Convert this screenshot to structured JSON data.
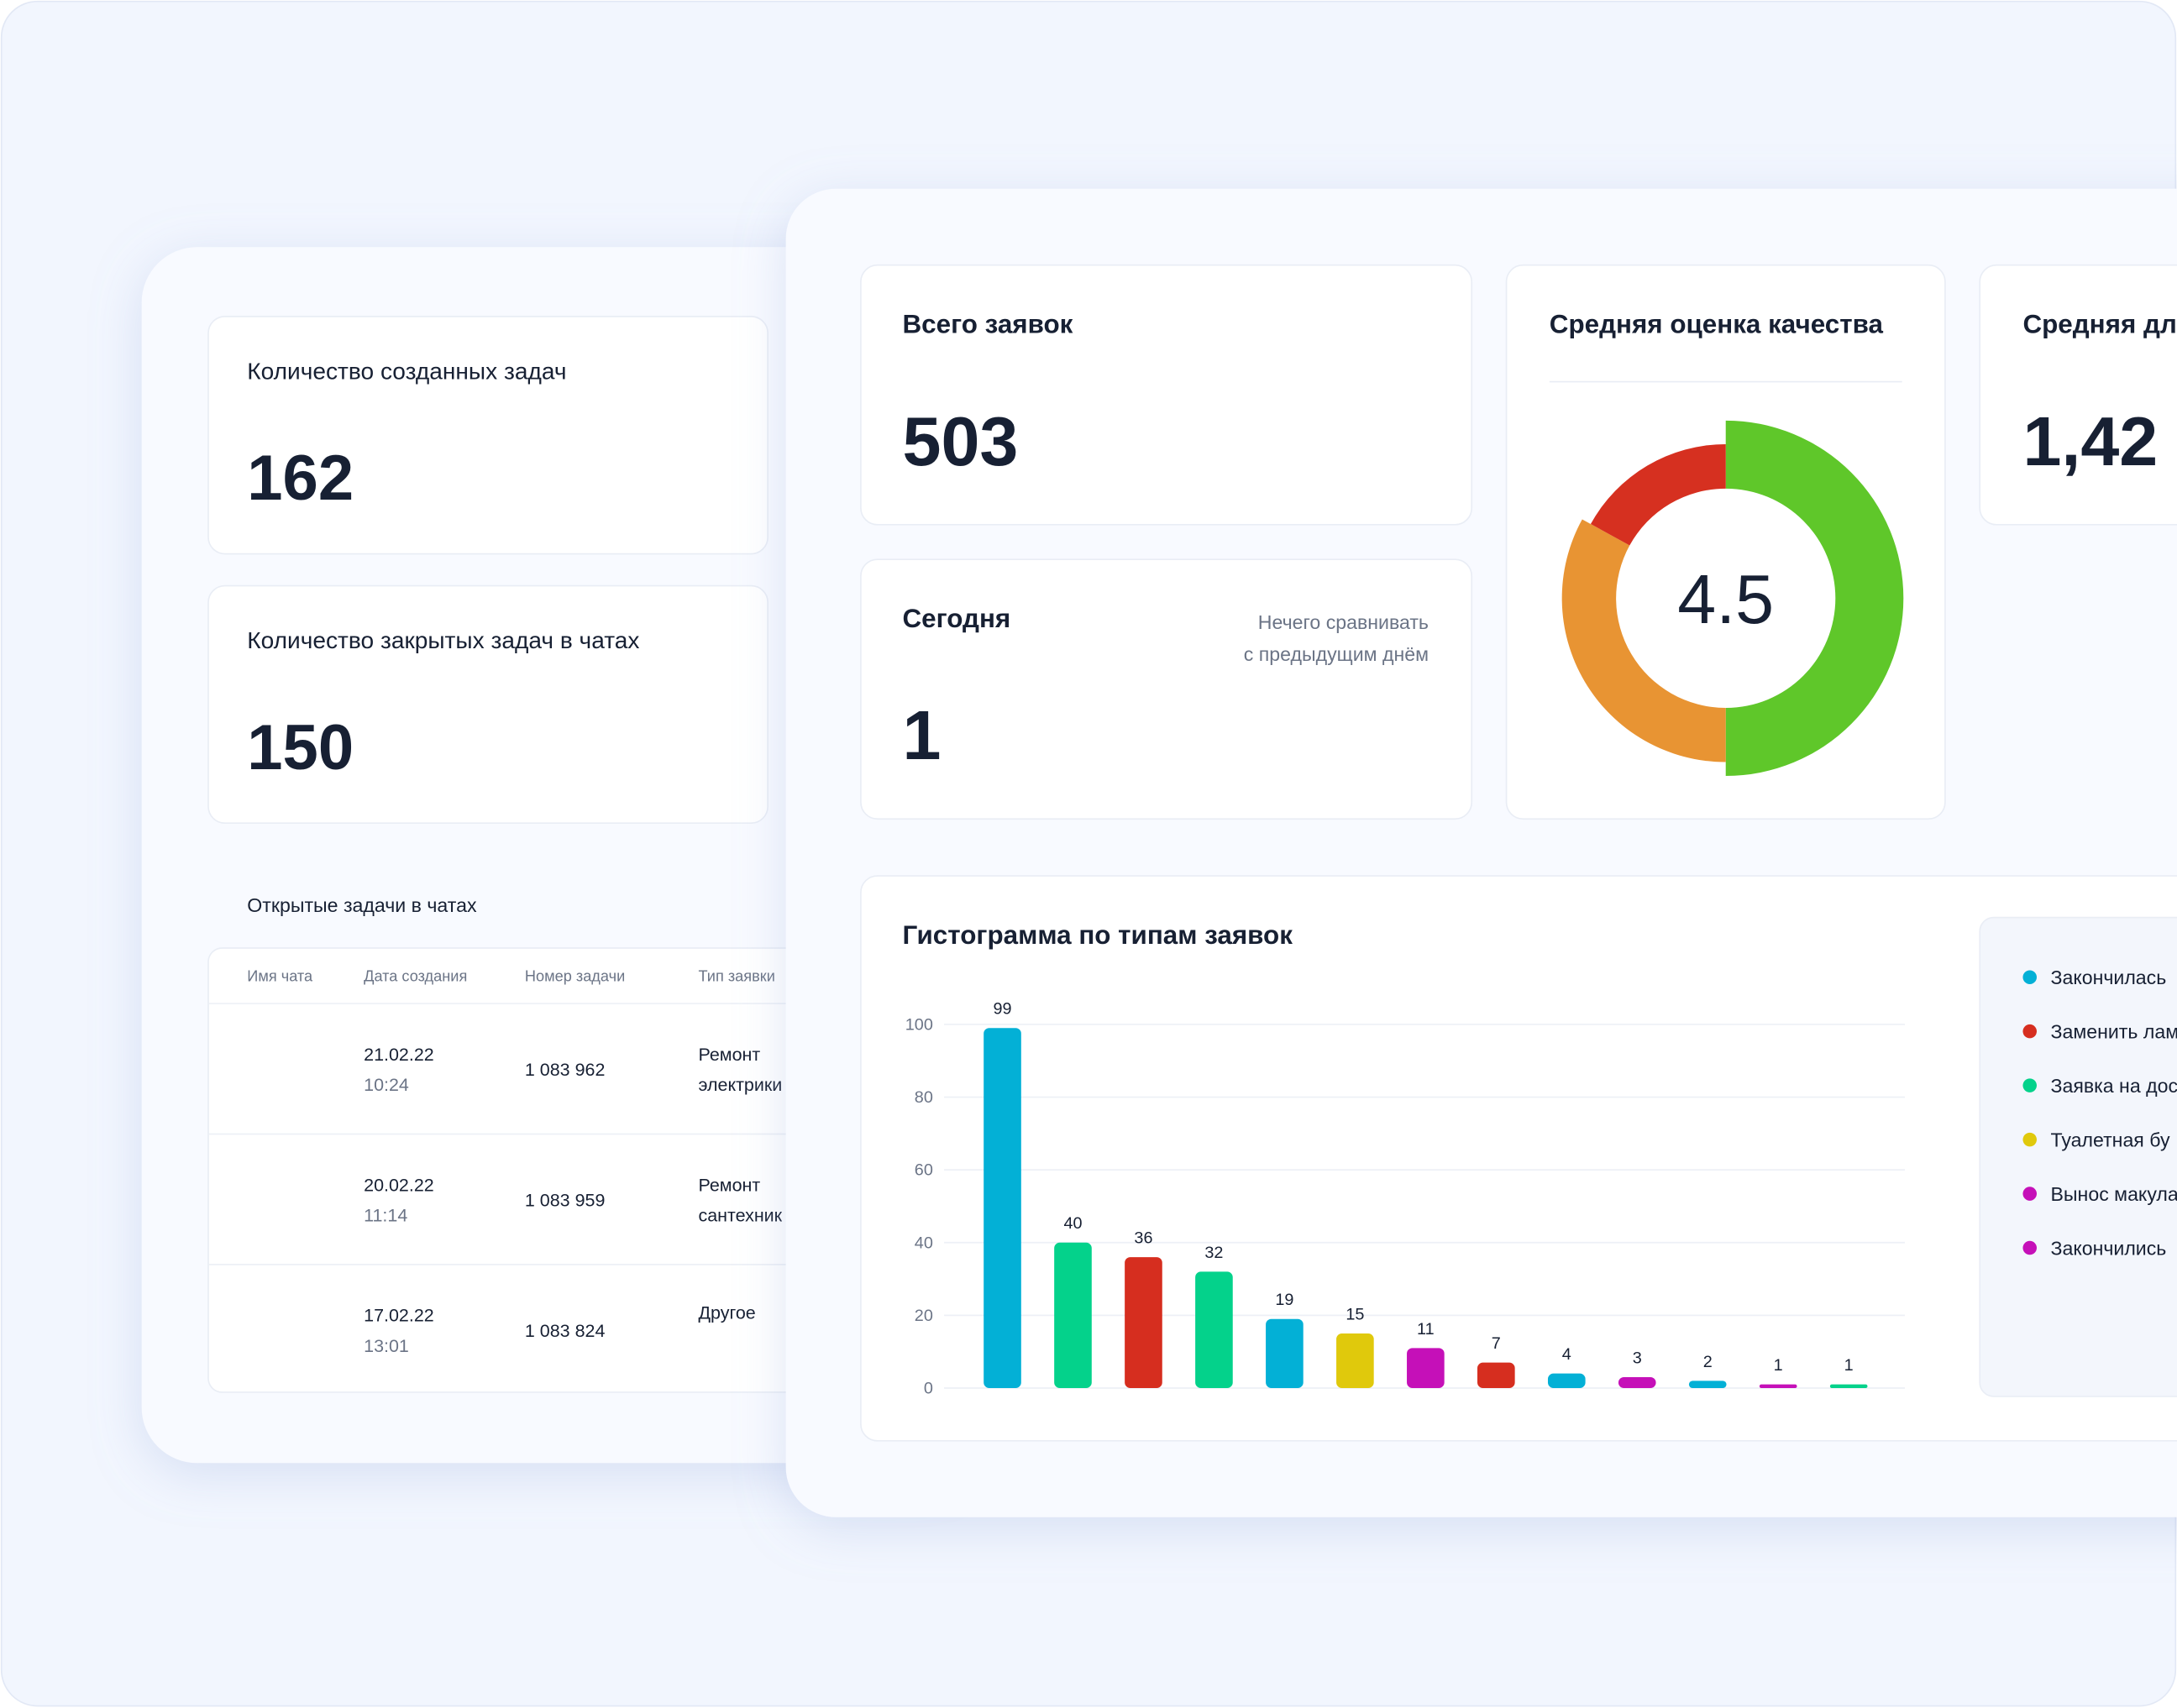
{
  "left_panel": {
    "cards": [
      {
        "title": "Количество созданных задач",
        "value": 162
      },
      {
        "title": "Количество закрытых задач в чатах",
        "value": 150
      }
    ],
    "table": {
      "title": "Открытые задачи в чатах",
      "columns": [
        "Имя чата",
        "Дата создания",
        "Номер задачи",
        "Тип заявки"
      ],
      "rows": [
        {
          "date": "21.02.22",
          "time": "10:24",
          "number": "1 083 962",
          "type": [
            "Ремонт",
            "электрики"
          ]
        },
        {
          "date": "20.02.22",
          "time": "11:14",
          "number": "1 083 959",
          "type": [
            "Ремонт",
            "сантехник"
          ]
        },
        {
          "date": "17.02.22",
          "time": "13:01",
          "number": "1 083 824",
          "type": [
            "Другое"
          ]
        }
      ]
    }
  },
  "right_panel": {
    "total": {
      "title": "Всего заявок",
      "value": 503
    },
    "today": {
      "title": "Сегодня",
      "note": [
        "Нечего сравнивать",
        "с предыдущим днём"
      ],
      "value": 1
    },
    "duration": {
      "title": "Средняя дл",
      "value": "1,42"
    }
  },
  "chart_data": [
    {
      "type": "pie",
      "title": "Средняя оценка качества",
      "center_label": "4.5",
      "values": [
        50,
        33,
        17
      ],
      "colors": [
        "#5fc72a",
        "#e89433",
        "#d63020"
      ]
    },
    {
      "type": "bar",
      "title": "Гистограмма по типам заявок",
      "values": [
        99,
        40,
        36,
        32,
        19,
        15,
        11,
        7,
        4,
        3,
        2,
        1,
        1
      ],
      "colors": [
        "#03b0d6",
        "#04d28b",
        "#d62e1f",
        "#04d28b",
        "#03b0d6",
        "#e0c90c",
        "#c510b8",
        "#d62e1f",
        "#03b0d6",
        "#c510b8",
        "#03b0d6",
        "#c510b8",
        "#04d28b"
      ],
      "ylim": [
        0,
        100
      ],
      "yticks": [
        0,
        20,
        40,
        60,
        80,
        100
      ],
      "grid": true,
      "legend": [
        {
          "label": "Закончилась",
          "color": "#03b0d6"
        },
        {
          "label": "Заменить лам",
          "color": "#d62e1f"
        },
        {
          "label": "Заявка на дос",
          "color": "#04d28b"
        },
        {
          "label": "Туалетная бу",
          "color": "#e0c90c"
        },
        {
          "label": "Вынос макула",
          "color": "#c510b8"
        },
        {
          "label": "Закончились",
          "color": "#c510b8"
        }
      ]
    }
  ]
}
